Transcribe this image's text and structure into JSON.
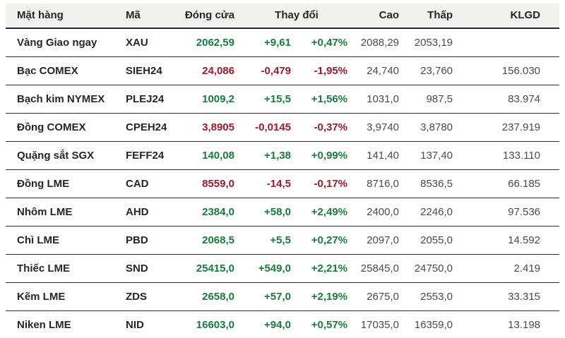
{
  "colors": {
    "up": "#177d3c",
    "down": "#a0192d",
    "header_bg": "#f2f1ee",
    "border": "#2b2b2b",
    "text_primary": "#262626",
    "text_secondary": "#4a4a4a"
  },
  "header": {
    "commodity": "Mặt hàng",
    "code": "Mã",
    "close": "Đóng cửa",
    "change": "Thay đổi",
    "high": "Cao",
    "low": "Thấp",
    "volume": "KLGD"
  },
  "table": {
    "rows": [
      {
        "name": "Vàng Giao ngay",
        "code": "XAU",
        "close": "2062,59",
        "change": "+9,61",
        "change_pct": "+0,47%",
        "high": "2088,29",
        "low": "2053,19",
        "volume": "",
        "trend": "up"
      },
      {
        "name": "Bạc COMEX",
        "code": "SIEH24",
        "close": "24,086",
        "change": "-0,479",
        "change_pct": "-1,95%",
        "high": "24,740",
        "low": "23,760",
        "volume": "156.030",
        "trend": "down"
      },
      {
        "name": "Bạch kim NYMEX",
        "code": "PLEJ24",
        "close": "1009,2",
        "change": "+15,5",
        "change_pct": "+1,56%",
        "high": "1031,0",
        "low": "987,5",
        "volume": "83.974",
        "trend": "up"
      },
      {
        "name": "Đồng COMEX",
        "code": "CPEH24",
        "close": "3,8905",
        "change": "-0,0145",
        "change_pct": "-0,37%",
        "high": "3,9740",
        "low": "3,8780",
        "volume": "237.919",
        "trend": "down"
      },
      {
        "name": "Quặng sắt SGX",
        "code": "FEFF24",
        "close": "140,08",
        "change": "+1,38",
        "change_pct": "+0,99%",
        "high": "141,40",
        "low": "137,40",
        "volume": "133.110",
        "trend": "up"
      },
      {
        "name": "Đồng LME",
        "code": "CAD",
        "close": "8559,0",
        "change": "-14,5",
        "change_pct": "-0,17%",
        "high": "8716,0",
        "low": "8536,5",
        "volume": "66.185",
        "trend": "down"
      },
      {
        "name": "Nhôm LME",
        "code": "AHD",
        "close": "2384,0",
        "change": "+58,0",
        "change_pct": "+2,49%",
        "high": "2400,0",
        "low": "2246,0",
        "volume": "97.536",
        "trend": "up"
      },
      {
        "name": "Chì LME",
        "code": "PBD",
        "close": "2068,5",
        "change": "+5,5",
        "change_pct": "+0,27%",
        "high": "2097,0",
        "low": "2055,0",
        "volume": "14.592",
        "trend": "up"
      },
      {
        "name": "Thiếc LME",
        "code": "SND",
        "close": "25415,0",
        "change": "+549,0",
        "change_pct": "+2,21%",
        "high": "25845,0",
        "low": "24750,0",
        "volume": "2.419",
        "trend": "up"
      },
      {
        "name": "Kẽm LME",
        "code": "ZDS",
        "close": "2658,0",
        "change": "+57,0",
        "change_pct": "+2,19%",
        "high": "2675,0",
        "low": "2553,0",
        "volume": "33.315",
        "trend": "up"
      },
      {
        "name": "Niken LME",
        "code": "NID",
        "close": "16603,0",
        "change": "+94,0",
        "change_pct": "+0,57%",
        "high": "17035,0",
        "low": "16359,0",
        "volume": "13.198",
        "trend": "up"
      }
    ]
  },
  "chart_data": {
    "type": "table",
    "title": "",
    "columns": [
      "Mặt hàng",
      "Mã",
      "Đóng cửa",
      "Thay đổi",
      "Thay đổi %",
      "Cao",
      "Thấp",
      "KLGD"
    ],
    "rows": [
      [
        "Vàng Giao ngay",
        "XAU",
        "2062,59",
        "+9,61",
        "+0,47%",
        "2088,29",
        "2053,19",
        ""
      ],
      [
        "Bạc COMEX",
        "SIEH24",
        "24,086",
        "-0,479",
        "-1,95%",
        "24,740",
        "23,760",
        "156.030"
      ],
      [
        "Bạch kim NYMEX",
        "PLEJ24",
        "1009,2",
        "+15,5",
        "+1,56%",
        "1031,0",
        "987,5",
        "83.974"
      ],
      [
        "Đồng COMEX",
        "CPEH24",
        "3,8905",
        "-0,0145",
        "-0,37%",
        "3,9740",
        "3,8780",
        "237.919"
      ],
      [
        "Quặng sắt SGX",
        "FEFF24",
        "140,08",
        "+1,38",
        "+0,99%",
        "141,40",
        "137,40",
        "133.110"
      ],
      [
        "Đồng LME",
        "CAD",
        "8559,0",
        "-14,5",
        "-0,17%",
        "8716,0",
        "8536,5",
        "66.185"
      ],
      [
        "Nhôm LME",
        "AHD",
        "2384,0",
        "+58,0",
        "+2,49%",
        "2400,0",
        "2246,0",
        "97.536"
      ],
      [
        "Chì LME",
        "PBD",
        "2068,5",
        "+5,5",
        "+0,27%",
        "2097,0",
        "2055,0",
        "14.592"
      ],
      [
        "Thiếc LME",
        "SND",
        "25415,0",
        "+549,0",
        "+2,21%",
        "25845,0",
        "24750,0",
        "2.419"
      ],
      [
        "Kẽm LME",
        "ZDS",
        "2658,0",
        "+57,0",
        "+2,19%",
        "2675,0",
        "2553,0",
        "33.315"
      ],
      [
        "Niken LME",
        "NID",
        "16603,0",
        "+94,0",
        "+0,57%",
        "17035,0",
        "16359,0",
        "13.198"
      ]
    ]
  }
}
